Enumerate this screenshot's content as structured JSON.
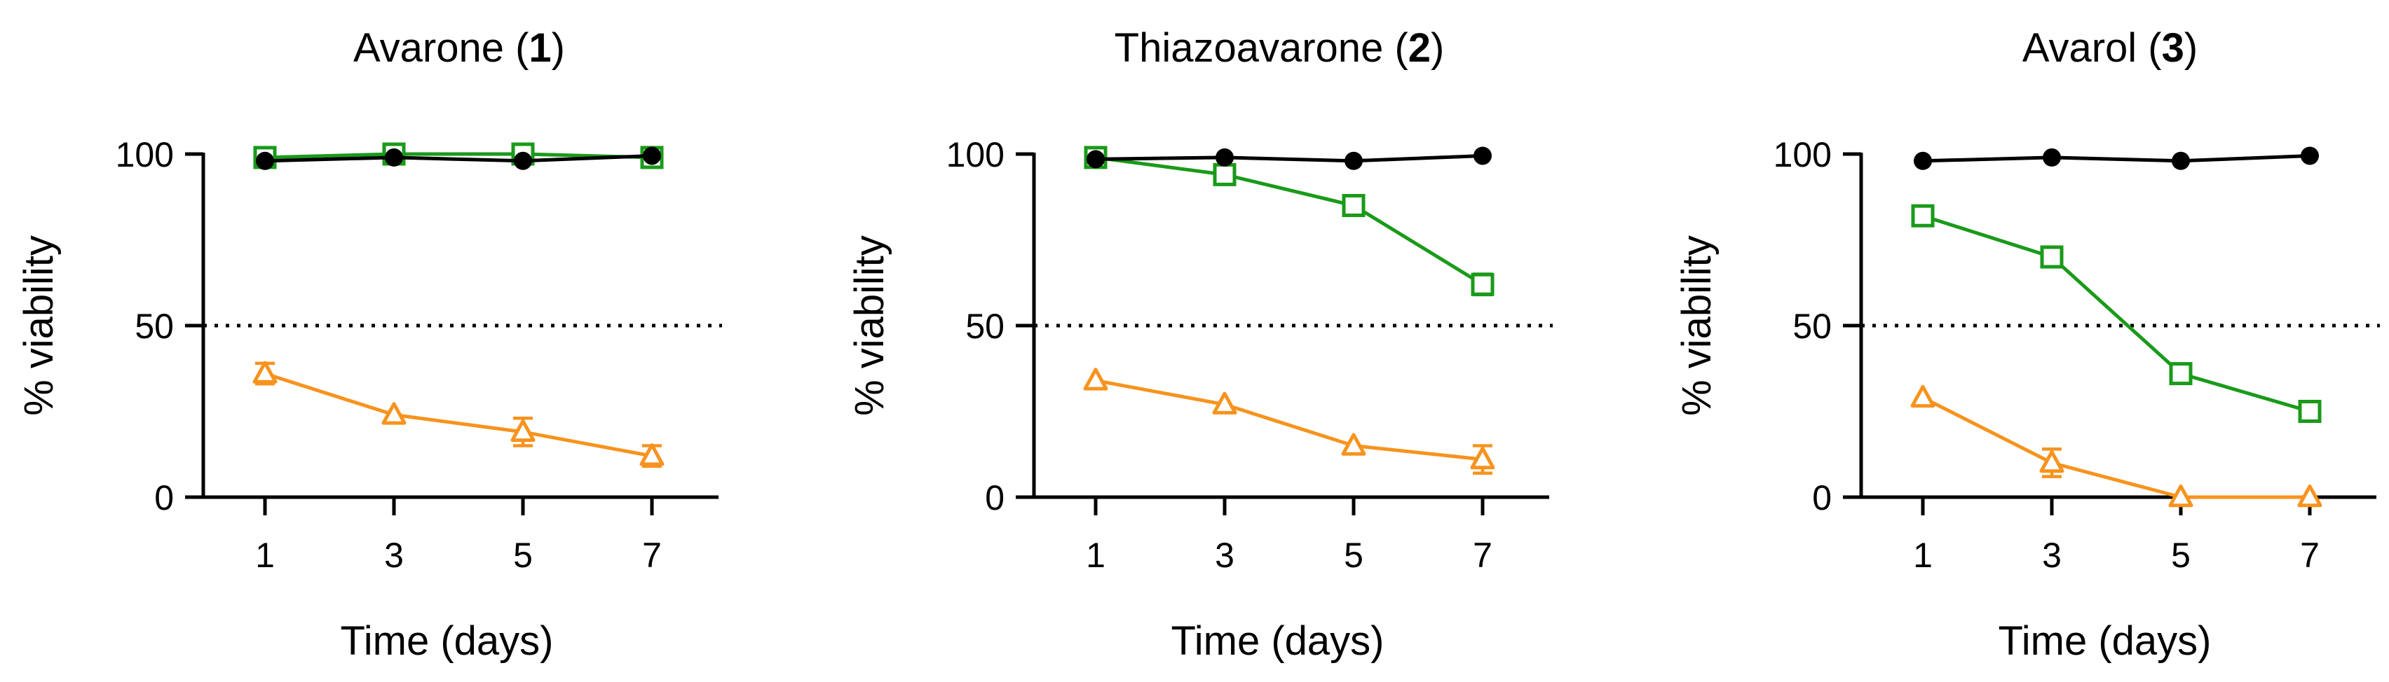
{
  "chart_data": [
    {
      "type": "line",
      "title": "Avarone (",
      "title_number": "1",
      "title_suffix": ")",
      "xlabel": "Time (days)",
      "ylabel": "% viability",
      "x": [
        1,
        3,
        5,
        7
      ],
      "x_ticks": [
        "1",
        "3",
        "5",
        "7"
      ],
      "y_ticks": [
        "0",
        "50",
        "100"
      ],
      "xlim": [
        0,
        8
      ],
      "ylim": [
        0,
        100
      ],
      "reference_line": 50,
      "series": [
        {
          "marker": "circle",
          "color": "#000000",
          "values": [
            98,
            99,
            98,
            99.5
          ],
          "errors": [
            0,
            0,
            0,
            0
          ]
        },
        {
          "marker": "square",
          "color": "#1a9a1a",
          "values": [
            99,
            100,
            100,
            99
          ],
          "errors": [
            0,
            0,
            0,
            0
          ]
        },
        {
          "marker": "triangle",
          "color": "#f7931e",
          "values": [
            36,
            24,
            19,
            12
          ],
          "errors": [
            3,
            0,
            4,
            3
          ]
        }
      ]
    },
    {
      "type": "line",
      "title": "Thiazoavarone (",
      "title_number": "2",
      "title_suffix": ")",
      "xlabel": "Time (days)",
      "ylabel": "% viability",
      "x": [
        1,
        3,
        5,
        7
      ],
      "x_ticks": [
        "1",
        "3",
        "5",
        "7"
      ],
      "y_ticks": [
        "0",
        "50",
        "100"
      ],
      "xlim": [
        0,
        8
      ],
      "ylim": [
        0,
        100
      ],
      "reference_line": 50,
      "series": [
        {
          "marker": "circle",
          "color": "#000000",
          "values": [
            98.5,
            99,
            98,
            99.5
          ],
          "errors": [
            0,
            0,
            0,
            0
          ]
        },
        {
          "marker": "square",
          "color": "#1a9a1a",
          "values": [
            99,
            94,
            85,
            62
          ],
          "errors": [
            0,
            0,
            0,
            3
          ]
        },
        {
          "marker": "triangle",
          "color": "#f7931e",
          "values": [
            34,
            27,
            15,
            11
          ],
          "errors": [
            0,
            0,
            0,
            4
          ]
        }
      ]
    },
    {
      "type": "line",
      "title": "Avarol (",
      "title_number": "3",
      "title_suffix": ")",
      "xlabel": "Time (days)",
      "ylabel": "% viability",
      "x": [
        1,
        3,
        5,
        7
      ],
      "x_ticks": [
        "1",
        "3",
        "5",
        "7"
      ],
      "y_ticks": [
        "0",
        "50",
        "100"
      ],
      "xlim": [
        0,
        8
      ],
      "ylim": [
        0,
        100
      ],
      "reference_line": 50,
      "series": [
        {
          "marker": "circle",
          "color": "#000000",
          "values": [
            98,
            99,
            98,
            99.5
          ],
          "errors": [
            0,
            0,
            0,
            0
          ]
        },
        {
          "marker": "square",
          "color": "#1a9a1a",
          "values": [
            82,
            70,
            36,
            25
          ],
          "errors": [
            0,
            2,
            0,
            2
          ]
        },
        {
          "marker": "triangle",
          "color": "#f7931e",
          "values": [
            29,
            10,
            0,
            0
          ],
          "errors": [
            0,
            4,
            0,
            0
          ]
        }
      ]
    }
  ]
}
